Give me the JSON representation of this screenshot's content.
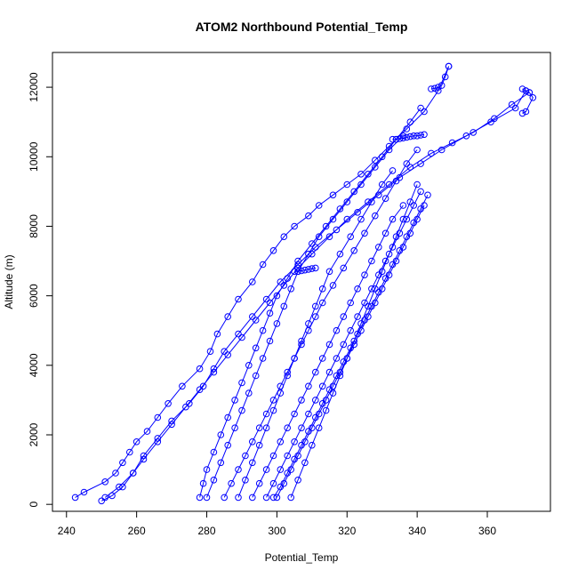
{
  "chart_data": {
    "type": "scatter",
    "title": "ATOM2 Northbound Potential_Temp",
    "xlabel": "Potential_Temp",
    "ylabel": "Altitude (m)",
    "xlim": [
      236,
      378
    ],
    "ylim": [
      -200,
      13000
    ],
    "xticks": [
      240,
      260,
      280,
      300,
      320,
      340,
      360
    ],
    "yticks": [
      0,
      2000,
      4000,
      6000,
      8000,
      10000,
      12000
    ],
    "grid": false,
    "color": "#0000ff",
    "series": [
      {
        "x": [
          242.5,
          245,
          251,
          254,
          256,
          258,
          260,
          263,
          266,
          269,
          273,
          278,
          281,
          283,
          286,
          289,
          293,
          296,
          299,
          302,
          305,
          309,
          312,
          316,
          320,
          324,
          328,
          332,
          337,
          342,
          346,
          349
        ],
        "y": [
          200,
          350,
          650,
          900,
          1200,
          1500,
          1800,
          2100,
          2500,
          2900,
          3400,
          3900,
          4400,
          4900,
          5400,
          5900,
          6400,
          6900,
          7300,
          7700,
          8000,
          8300,
          8600,
          8900,
          9200,
          9500,
          9900,
          10300,
          10800,
          11300,
          11900,
          12600
        ]
      },
      {
        "x": [
          250,
          253,
          256,
          259,
          262,
          266,
          270,
          274,
          278,
          282,
          286,
          290,
          294,
          298,
          302,
          306,
          310,
          315,
          320,
          326,
          332,
          338,
          344,
          350,
          356,
          362,
          367,
          372
        ],
        "y": [
          100,
          250,
          500,
          900,
          1300,
          1800,
          2300,
          2800,
          3300,
          3800,
          4300,
          4800,
          5300,
          5800,
          6300,
          6800,
          7200,
          7700,
          8200,
          8700,
          9200,
          9700,
          10100,
          10400,
          10700,
          11100,
          11500,
          11850
        ]
      },
      {
        "x": [
          251,
          255,
          259,
          262,
          266,
          270,
          275,
          279,
          282,
          285,
          289,
          293,
          297,
          301,
          306,
          311,
          317,
          323,
          329,
          335,
          341,
          347,
          354,
          361,
          368,
          371
        ],
        "y": [
          200,
          500,
          900,
          1400,
          1900,
          2400,
          2900,
          3400,
          3900,
          4400,
          4900,
          5400,
          5900,
          6400,
          6900,
          7400,
          7900,
          8400,
          8900,
          9400,
          9800,
          10200,
          10600,
          11000,
          11400,
          11900
        ]
      },
      {
        "x": [
          278,
          279,
          280,
          282,
          284,
          286,
          288,
          290,
          292,
          294,
          296,
          298,
          300,
          303,
          306,
          310,
          314,
          318,
          322,
          326,
          330,
          334,
          338,
          341
        ],
        "y": [
          200,
          600,
          1000,
          1500,
          2000,
          2500,
          3000,
          3500,
          4000,
          4500,
          5000,
          5500,
          6000,
          6500,
          7000,
          7500,
          8000,
          8500,
          9000,
          9500,
          10000,
          10500,
          11000,
          11400
        ]
      },
      {
        "x": [
          280,
          282,
          284,
          286,
          288,
          290,
          292,
          294,
          296,
          298,
          300,
          302,
          304,
          306,
          309,
          312,
          316,
          320,
          324,
          328,
          332,
          336
        ],
        "y": [
          200,
          700,
          1200,
          1700,
          2200,
          2700,
          3200,
          3700,
          4200,
          4700,
          5200,
          5700,
          6200,
          6700,
          7200,
          7700,
          8200,
          8700,
          9200,
          9700,
          10200,
          10600
        ]
      },
      {
        "x": [
          285,
          287,
          289,
          291,
          293,
          295,
          297,
          299,
          301,
          303,
          305,
          307,
          309,
          311,
          313,
          316,
          319,
          322,
          325,
          328,
          331,
          334,
          337,
          340
        ],
        "y": [
          200,
          600,
          1000,
          1400,
          1800,
          2200,
          2600,
          3000,
          3400,
          3800,
          4200,
          4600,
          5000,
          5400,
          5800,
          6300,
          6800,
          7300,
          7800,
          8300,
          8800,
          9300,
          9800,
          10200
        ]
      },
      {
        "x": [
          289,
          291,
          293,
          295,
          297,
          299,
          301,
          303,
          305,
          307,
          309,
          311,
          313,
          315,
          318,
          321,
          324,
          327,
          330,
          333
        ],
        "y": [
          200,
          700,
          1200,
          1700,
          2200,
          2700,
          3200,
          3700,
          4200,
          4700,
          5200,
          5700,
          6200,
          6700,
          7200,
          7700,
          8200,
          8700,
          9200,
          9600
        ]
      },
      {
        "x": [
          293,
          295,
          297,
          299,
          301,
          303,
          305,
          307,
          309,
          311,
          313,
          315,
          317,
          319,
          321,
          323,
          325,
          327,
          329,
          331,
          333,
          336
        ],
        "y": [
          200,
          600,
          1000,
          1400,
          1800,
          2200,
          2600,
          3000,
          3400,
          3800,
          4200,
          4600,
          5000,
          5400,
          5800,
          6200,
          6600,
          7000,
          7400,
          7800,
          8200,
          8600
        ]
      },
      {
        "x": [
          297,
          299,
          301,
          303,
          305,
          307,
          309,
          311,
          313,
          315,
          317,
          319,
          321,
          323,
          325,
          327,
          329,
          331,
          333,
          335,
          337,
          339,
          341
        ],
        "y": [
          200,
          600,
          1000,
          1400,
          1800,
          2200,
          2600,
          3000,
          3400,
          3800,
          4200,
          4600,
          5000,
          5400,
          5800,
          6200,
          6600,
          7000,
          7400,
          7800,
          8200,
          8600,
          9000
        ]
      },
      {
        "x": [
          299,
          301,
          303,
          305,
          307,
          309,
          311,
          313,
          315,
          317,
          319,
          321,
          323,
          325,
          327,
          329,
          331,
          333,
          335,
          337,
          339,
          341,
          343
        ],
        "y": [
          200,
          500,
          900,
          1300,
          1700,
          2100,
          2500,
          2900,
          3300,
          3700,
          4100,
          4500,
          4900,
          5300,
          5700,
          6100,
          6500,
          6900,
          7300,
          7700,
          8100,
          8500,
          8900
        ]
      },
      {
        "x": [
          300,
          302,
          304,
          306,
          308,
          310,
          312,
          314,
          316,
          318,
          320,
          322,
          324,
          326,
          328,
          330,
          332,
          334,
          336,
          338,
          340,
          342
        ],
        "y": [
          200,
          600,
          1000,
          1400,
          1800,
          2200,
          2600,
          3000,
          3400,
          3800,
          4200,
          4600,
          5000,
          5400,
          5800,
          6200,
          6600,
          7000,
          7400,
          7800,
          8200,
          8600
        ]
      },
      {
        "x": [
          304,
          306,
          308,
          310,
          312,
          314,
          316,
          318,
          320,
          322,
          324,
          326,
          328,
          330,
          332,
          334,
          336,
          338,
          340
        ],
        "y": [
          200,
          700,
          1200,
          1700,
          2200,
          2700,
          3200,
          3700,
          4200,
          4700,
          5200,
          5700,
          6200,
          6700,
          7200,
          7700,
          8200,
          8700,
          9200
        ]
      },
      {
        "x": [
          305,
          306,
          307,
          308,
          309,
          310,
          311
        ],
        "y": [
          6700,
          6700,
          6720,
          6740,
          6760,
          6780,
          6800
        ]
      },
      {
        "x": [
          333,
          334,
          335,
          336,
          337,
          338,
          339,
          340,
          341,
          342
        ],
        "y": [
          10500,
          10500,
          10520,
          10540,
          10560,
          10580,
          10600,
          10600,
          10620,
          10640
        ]
      },
      {
        "x": [
          344,
          345,
          346,
          347,
          348,
          349
        ],
        "y": [
          11950,
          11970,
          12000,
          12050,
          12300,
          12600
        ]
      },
      {
        "x": [
          370,
          371,
          372,
          373,
          371,
          370
        ],
        "y": [
          11950,
          11900,
          11850,
          11700,
          11300,
          11250
        ]
      }
    ]
  }
}
